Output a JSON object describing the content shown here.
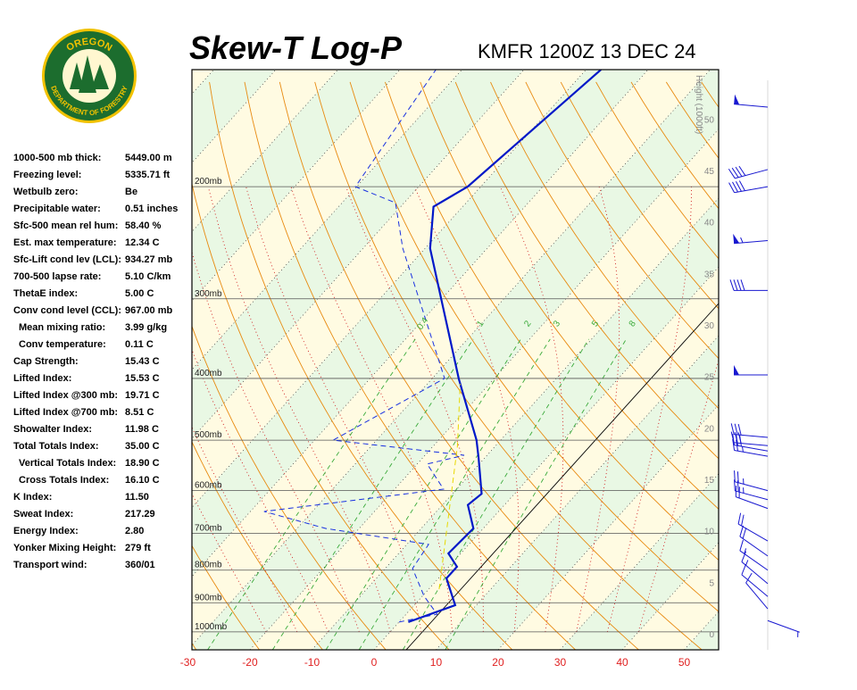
{
  "logo": {
    "top": "OREGON",
    "bottom": "DEPARTMENT OF FORESTRY"
  },
  "indices": [
    {
      "label": "1000-500 mb thick:",
      "value": "5449.00 m"
    },
    {
      "label": "Freezing level:",
      "value": "5335.71 ft"
    },
    {
      "label": "Wetbulb zero:",
      "value": "Be"
    },
    {
      "label": "Precipitable water:",
      "value": "0.51 inches"
    },
    {
      "label": "Sfc-500 mean rel hum:",
      "value": "58.40 %"
    },
    {
      "label": "Est. max temperature:",
      "value": "12.34 C"
    },
    {
      "label": "Sfc-Lift cond lev (LCL):",
      "value": "934.27 mb"
    },
    {
      "label": "700-500 lapse rate:",
      "value": "5.10 C/km"
    },
    {
      "label": "ThetaE index:",
      "value": "5.00 C"
    },
    {
      "label": "Conv cond level (CCL):",
      "value": "967.00 mb"
    },
    {
      "label": "Mean mixing ratio:",
      "value": "3.99 g/kg"
    },
    {
      "label": "Conv temperature:",
      "value": "0.11 C"
    },
    {
      "label": "Cap Strength:",
      "value": "15.43 C"
    },
    {
      "label": "Lifted Index:",
      "value": "15.53 C"
    },
    {
      "label": "Lifted Index @300 mb:",
      "value": "19.71 C"
    },
    {
      "label": "Lifted Index @700 mb:",
      "value": "8.51 C"
    },
    {
      "label": "Showalter Index:",
      "value": "11.98 C"
    },
    {
      "label": "Total Totals Index:",
      "value": "35.00 C"
    },
    {
      "label": "Vertical Totals Index:",
      "value": "18.90 C"
    },
    {
      "label": "Cross Totals Index:",
      "value": "16.10 C"
    },
    {
      "label": "K Index:",
      "value": "11.50"
    },
    {
      "label": "Sweat Index:",
      "value": "217.29"
    },
    {
      "label": "Energy Index:",
      "value": "2.80"
    },
    {
      "label": "Yonker Mixing Height:",
      "value": "279 ft"
    },
    {
      "label": "Transport wind:",
      "value": "360/01"
    }
  ],
  "chart_data": {
    "type": "skewt",
    "title": "Skew-T Log-P",
    "subtitle": "KMFR 1200Z 13 DEC 24",
    "height_label": "Height (1000ft)",
    "xlim": [
      -29.35,
      55.54
    ],
    "xticks": [
      -30,
      -20,
      -10,
      0,
      10,
      20,
      30,
      40,
      50
    ],
    "ylim": [
      1067,
      131
    ],
    "yticks": [
      {
        "value": 1000,
        "label": "1000mb"
      },
      {
        "value": 900,
        "label": "900mb"
      },
      {
        "value": 800,
        "label": "800mb"
      },
      {
        "value": 700,
        "label": "700mb"
      },
      {
        "value": 600,
        "label": "600mb"
      },
      {
        "value": 500,
        "label": "500mb"
      },
      {
        "value": 400,
        "label": "400mb"
      },
      {
        "value": 300,
        "label": "300mb"
      },
      {
        "value": 200,
        "label": "200mb"
      }
    ],
    "height_lim": [
      -1.56,
      54.8
    ],
    "height_ticks": [
      0,
      5,
      10,
      15,
      20,
      25,
      30,
      35,
      40,
      45,
      50
    ],
    "mixing_ratios": [
      0.4,
      1,
      2,
      3,
      5,
      8
    ],
    "series": [
      {
        "color": "#0018c8",
        "line_style": "solid",
        "pressure": [
          965,
          908,
          824,
          790,
          753,
          688,
          632,
          607,
          533,
          500,
          401,
          250,
          215,
          200,
          131
        ],
        "values": [
          1.5,
          6.6,
          1.3,
          1.3,
          -2.0,
          -1.6,
          -5.9,
          -5.3,
          -11.0,
          -13.9,
          -25.6,
          -49.2,
          -54.7,
          -52.1,
          -47.6
        ]
      },
      {
        "color": "#1830e0",
        "line_style": "dashed",
        "pressure": [
          965,
          938,
          879,
          795,
          729,
          688,
          647,
          597,
          545,
          528,
          500,
          400,
          250,
          212,
          200,
          131
        ],
        "values": [
          0.0,
          5.0,
          0.3,
          -5.6,
          -6.5,
          -25.4,
          -37.8,
          -12.1,
          -18.4,
          -13.7,
          -37.0,
          -28.0,
          -53.6,
          -61.4,
          -70.2,
          -74.2
        ]
      },
      {
        "color": "#e8d800",
        "line_style": "dashed",
        "pressure": [
          857,
          511,
          408
        ],
        "values": [
          1.7,
          -16.1,
          -24.7
        ]
      }
    ],
    "winds": {
      "pressure": [
        150,
        188,
        200,
        243,
        291,
        395,
        495,
        510,
        520,
        530,
        600,
        620,
        640,
        720,
        760,
        800,
        840,
        880,
        920,
        960
      ],
      "direction": [
        275,
        255,
        260,
        265,
        270,
        270,
        275,
        275,
        280,
        280,
        285,
        285,
        290,
        300,
        305,
        305,
        310,
        310,
        320,
        110
      ],
      "speed": [
        50,
        40,
        40,
        55,
        40,
        50,
        30,
        30,
        30,
        25,
        25,
        25,
        20,
        20,
        20,
        15,
        15,
        10,
        10,
        5
      ],
      "color": "#1818d0"
    }
  }
}
